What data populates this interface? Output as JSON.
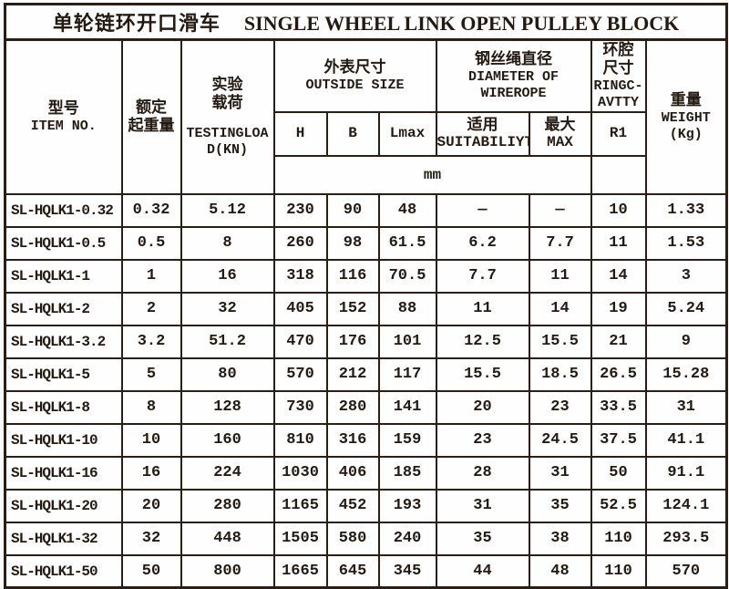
{
  "title": {
    "cn": "单轮链环开口滑车",
    "en": "SINGLE WHEEL LINK OPEN PULLEY BLOCK"
  },
  "colors": {
    "border": "#2a1e15",
    "background": "#fefefe",
    "text": "#241a12"
  },
  "header": {
    "item": {
      "cn": "型号",
      "en": "ITEM NO."
    },
    "capacity": {
      "cn1": "额定",
      "cn2": "起重量"
    },
    "test_load": {
      "cn1": "实验",
      "cn2": "载荷",
      "en1": "TESTINGLOA",
      "en2": "D(KN)"
    },
    "outside_size": {
      "cn": "外表尺寸",
      "en": "OUTSIDE SIZE"
    },
    "wirerope": {
      "cn": "钢丝绳直径",
      "en1": "DIAMETER OF",
      "en2": "WIREROPE"
    },
    "ring": {
      "cn1": "环腔",
      "cn2": "尺寸",
      "en1": "RINGC-",
      "en2": "AVTTY"
    },
    "weight": {
      "cn": "重量",
      "en": "WEIGHT",
      "unit": "(Kg)"
    },
    "sub": {
      "h": "H",
      "b": "B",
      "lmax": "Lmax",
      "suit_cn": "适用",
      "suit_en": "SUITABILIYT",
      "max_cn": "最大",
      "max_en": "MAX",
      "r1": "R1"
    },
    "unit_row": {
      "mm": "mm"
    }
  },
  "table": {
    "row_fields": [
      "item",
      "capacity",
      "test_load",
      "h",
      "b",
      "lmax",
      "rope_suit",
      "rope_max",
      "r1",
      "weight"
    ],
    "rows": [
      {
        "item": "SL-HQLK1-0.32",
        "capacity": "0.32",
        "test_load": "5.12",
        "h": "230",
        "b": "90",
        "lmax": "48",
        "rope_suit": "—",
        "rope_max": "—",
        "r1": "10",
        "weight": "1.33"
      },
      {
        "item": "SL-HQLK1-0.5",
        "capacity": "0.5",
        "test_load": "8",
        "h": "260",
        "b": "98",
        "lmax": "61.5",
        "rope_suit": "6.2",
        "rope_max": "7.7",
        "r1": "11",
        "weight": "1.53"
      },
      {
        "item": "SL-HQLK1-1",
        "capacity": "1",
        "test_load": "16",
        "h": "318",
        "b": "116",
        "lmax": "70.5",
        "rope_suit": "7.7",
        "rope_max": "11",
        "r1": "14",
        "weight": "3"
      },
      {
        "item": "SL-HQLK1-2",
        "capacity": "2",
        "test_load": "32",
        "h": "405",
        "b": "152",
        "lmax": "88",
        "rope_suit": "11",
        "rope_max": "14",
        "r1": "19",
        "weight": "5.24"
      },
      {
        "item": "SL-HQLK1-3.2",
        "capacity": "3.2",
        "test_load": "51.2",
        "h": "470",
        "b": "176",
        "lmax": "101",
        "rope_suit": "12.5",
        "rope_max": "15.5",
        "r1": "21",
        "weight": "9"
      },
      {
        "item": "SL-HQLK1-5",
        "capacity": "5",
        "test_load": "80",
        "h": "570",
        "b": "212",
        "lmax": "117",
        "rope_suit": "15.5",
        "rope_max": "18.5",
        "r1": "26.5",
        "weight": "15.28"
      },
      {
        "item": "SL-HQLK1-8",
        "capacity": "8",
        "test_load": "128",
        "h": "730",
        "b": "280",
        "lmax": "141",
        "rope_suit": "20",
        "rope_max": "23",
        "r1": "33.5",
        "weight": "31"
      },
      {
        "item": "SL-HQLK1-10",
        "capacity": "10",
        "test_load": "160",
        "h": "810",
        "b": "316",
        "lmax": "159",
        "rope_suit": "23",
        "rope_max": "24.5",
        "r1": "37.5",
        "weight": "41.1"
      },
      {
        "item": "SL-HQLK1-16",
        "capacity": "16",
        "test_load": "224",
        "h": "1030",
        "b": "406",
        "lmax": "185",
        "rope_suit": "28",
        "rope_max": "31",
        "r1": "50",
        "weight": "91.1"
      },
      {
        "item": "SL-HQLK1-20",
        "capacity": "20",
        "test_load": "280",
        "h": "1165",
        "b": "452",
        "lmax": "193",
        "rope_suit": "31",
        "rope_max": "35",
        "r1": "52.5",
        "weight": "124.1"
      },
      {
        "item": "SL-HQLK1-32",
        "capacity": "32",
        "test_load": "448",
        "h": "1505",
        "b": "580",
        "lmax": "240",
        "rope_suit": "35",
        "rope_max": "38",
        "r1": "110",
        "weight": "293.5"
      },
      {
        "item": "SL-HQLK1-50",
        "capacity": "50",
        "test_load": "800",
        "h": "1665",
        "b": "645",
        "lmax": "345",
        "rope_suit": "44",
        "rope_max": "48",
        "r1": "110",
        "weight": "570"
      }
    ]
  }
}
